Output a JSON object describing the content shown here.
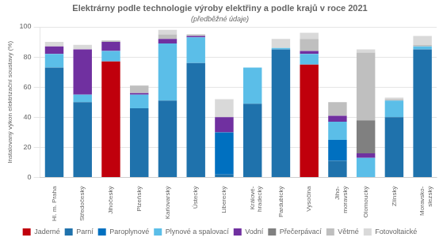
{
  "chart_data": {
    "type": "bar",
    "title": "Elektrárny podle technologie výroby elektřiny a podle krajů v roce 2021",
    "subtitle": "(předběžné údaje)",
    "ylabel": "Instalovaný výkon elektrizační soustavy (%)",
    "categories": [
      "Hl. m. Praha",
      "Středočeský",
      "Jihočeský",
      "Plzeňský",
      "Karlovarský",
      "Ústecký",
      "Liberecký",
      "Králové-\nhradecký",
      "Pardubický",
      "Vysočina",
      "Jiho-\nmoravský",
      "Olomoucký",
      "Zlínský",
      "Moravsko-\nslezský"
    ],
    "series": [
      {
        "name": "Jaderné",
        "color": "#C0000C",
        "values": [
          0,
          0,
          77,
          0,
          0,
          0,
          0,
          0,
          0,
          75,
          0,
          0,
          0,
          0
        ]
      },
      {
        "name": "Parní",
        "color": "#1F72AC",
        "values": [
          73,
          50,
          0,
          46,
          51,
          76,
          2,
          49,
          85,
          0,
          11,
          0,
          40,
          85
        ]
      },
      {
        "name": "Paroplynové",
        "color": "#0070C0",
        "values": [
          0,
          0,
          0,
          0,
          0,
          0,
          28,
          0,
          0,
          0,
          14,
          0,
          0,
          0
        ]
      },
      {
        "name": "Plynové a spalovací",
        "color": "#5BBEE8",
        "values": [
          9,
          5,
          7,
          9,
          38,
          17,
          0,
          24,
          1,
          7,
          12,
          13,
          11,
          2
        ]
      },
      {
        "name": "Vodní",
        "color": "#7030A0",
        "values": [
          5,
          30,
          6,
          1,
          3,
          1,
          10,
          0,
          0,
          2,
          4,
          3,
          0,
          0
        ]
      },
      {
        "name": "Přečerpávací",
        "color": "#808080",
        "values": [
          0,
          0,
          0,
          0,
          0,
          0,
          0,
          0,
          0,
          0,
          0,
          22,
          0,
          0
        ]
      },
      {
        "name": "Větrné",
        "color": "#BFBFBF",
        "values": [
          0,
          0,
          1,
          5,
          3,
          1,
          0,
          0,
          0,
          8,
          9,
          45,
          1,
          1
        ]
      },
      {
        "name": "Fotovoltaické",
        "color": "#D9D9D9",
        "values": [
          3,
          3,
          0,
          0,
          3,
          0,
          12,
          0,
          6,
          4,
          0,
          2,
          1,
          6
        ]
      }
    ],
    "stacked": true,
    "ylim": [
      0,
      100
    ],
    "yticks": [
      0,
      20,
      40,
      60,
      80,
      100
    ],
    "grid": true,
    "legend": "bottom"
  }
}
